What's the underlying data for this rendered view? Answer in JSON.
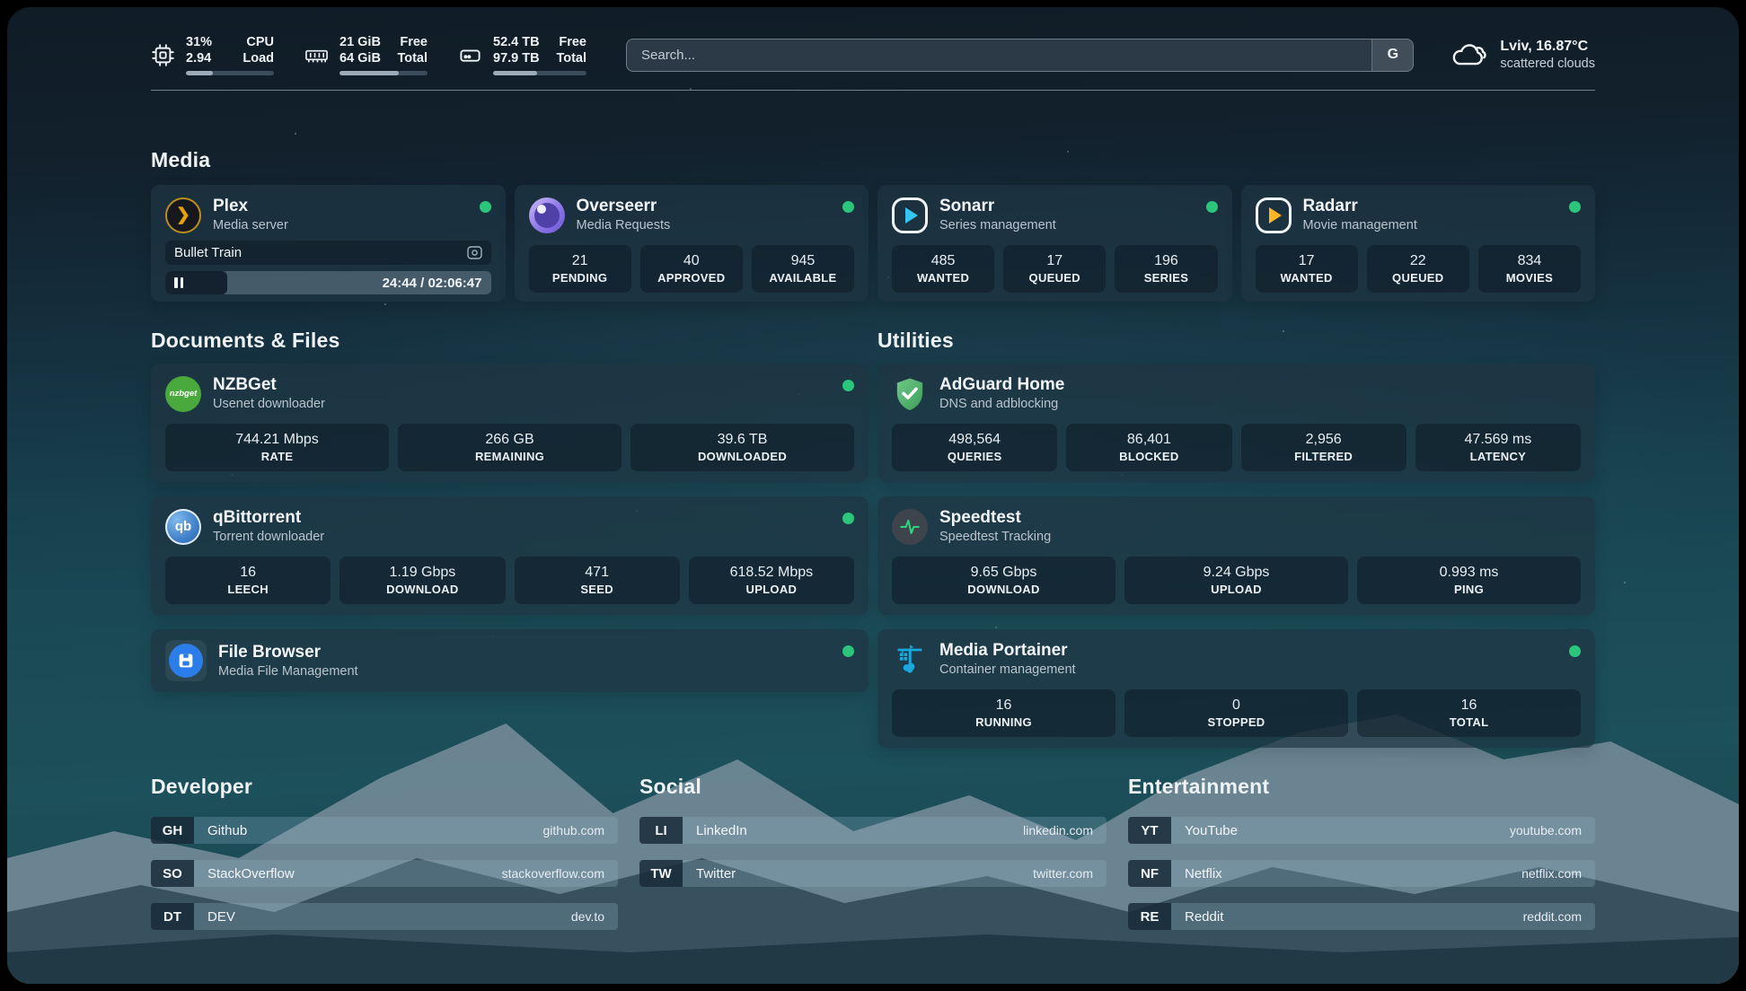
{
  "colors": {
    "status_online": "#2bc57c",
    "accent_plex": "#e5a00d"
  },
  "header": {
    "cpu": {
      "value1": "31%",
      "value2": "2.94",
      "label1": "CPU",
      "label2": "Load",
      "progress": 31
    },
    "memory": {
      "value1": "21 GiB",
      "value2": "64 GiB",
      "label1": "Free",
      "label2": "Total",
      "progress": 67
    },
    "disk": {
      "value1": "52.4 TB",
      "value2": "97.9 TB",
      "label1": "Free",
      "label2": "Total",
      "progress": 47
    },
    "search": {
      "placeholder": "Search...",
      "engine_button": "G"
    },
    "weather": {
      "line1": "Lviv, 16.87°C",
      "line2": "scattered clouds"
    }
  },
  "media": {
    "heading": "Media",
    "plex": {
      "title": "Plex",
      "subtitle": "Media server",
      "now_playing": "Bullet Train",
      "time": "24:44 / 02:06:47",
      "progress_percent": 19
    },
    "overseerr": {
      "title": "Overseerr",
      "subtitle": "Media Requests",
      "stats": [
        {
          "value": "21",
          "label": "PENDING"
        },
        {
          "value": "40",
          "label": "APPROVED"
        },
        {
          "value": "945",
          "label": "AVAILABLE"
        }
      ]
    },
    "sonarr": {
      "title": "Sonarr",
      "subtitle": "Series management",
      "stats": [
        {
          "value": "485",
          "label": "WANTED"
        },
        {
          "value": "17",
          "label": "QUEUED"
        },
        {
          "value": "196",
          "label": "SERIES"
        }
      ]
    },
    "radarr": {
      "title": "Radarr",
      "subtitle": "Movie management",
      "stats": [
        {
          "value": "17",
          "label": "WANTED"
        },
        {
          "value": "22",
          "label": "QUEUED"
        },
        {
          "value": "834",
          "label": "MOVIES"
        }
      ]
    }
  },
  "documents": {
    "heading": "Documents & Files",
    "nzbget": {
      "title": "NZBGet",
      "subtitle": "Usenet downloader",
      "icon_text": "nzbget",
      "stats": [
        {
          "value": "744.21 Mbps",
          "label": "RATE"
        },
        {
          "value": "266 GB",
          "label": "REMAINING"
        },
        {
          "value": "39.6 TB",
          "label": "DOWNLOADED"
        }
      ]
    },
    "qbittorrent": {
      "title": "qBittorrent",
      "subtitle": "Torrent downloader",
      "icon_text": "qb",
      "stats": [
        {
          "value": "16",
          "label": "LEECH"
        },
        {
          "value": "1.19 Gbps",
          "label": "DOWNLOAD"
        },
        {
          "value": "471",
          "label": "SEED"
        },
        {
          "value": "618.52 Mbps",
          "label": "UPLOAD"
        }
      ]
    },
    "filebrowser": {
      "title": "File Browser",
      "subtitle": "Media File Management"
    }
  },
  "utilities": {
    "heading": "Utilities",
    "adguard": {
      "title": "AdGuard Home",
      "subtitle": "DNS and adblocking",
      "stats": [
        {
          "value": "498,564",
          "label": "QUERIES"
        },
        {
          "value": "86,401",
          "label": "BLOCKED"
        },
        {
          "value": "2,956",
          "label": "FILTERED"
        },
        {
          "value": "47.569 ms",
          "label": "LATENCY"
        }
      ]
    },
    "speedtest": {
      "title": "Speedtest",
      "subtitle": "Speedtest Tracking",
      "stats": [
        {
          "value": "9.65 Gbps",
          "label": "DOWNLOAD"
        },
        {
          "value": "9.24 Gbps",
          "label": "UPLOAD"
        },
        {
          "value": "0.993 ms",
          "label": "PING"
        }
      ]
    },
    "portainer": {
      "title": "Media Portainer",
      "subtitle": "Container management",
      "stats": [
        {
          "value": "16",
          "label": "RUNNING"
        },
        {
          "value": "0",
          "label": "STOPPED"
        },
        {
          "value": "16",
          "label": "TOTAL"
        }
      ]
    }
  },
  "bookmarks": {
    "developer": {
      "heading": "Developer",
      "links": [
        {
          "abbr": "GH",
          "name": "Github",
          "url": "github.com"
        },
        {
          "abbr": "SO",
          "name": "StackOverflow",
          "url": "stackoverflow.com"
        },
        {
          "abbr": "DT",
          "name": "DEV",
          "url": "dev.to"
        }
      ]
    },
    "social": {
      "heading": "Social",
      "links": [
        {
          "abbr": "LI",
          "name": "LinkedIn",
          "url": "linkedin.com"
        },
        {
          "abbr": "TW",
          "name": "Twitter",
          "url": "twitter.com"
        }
      ]
    },
    "entertainment": {
      "heading": "Entertainment",
      "links": [
        {
          "abbr": "YT",
          "name": "YouTube",
          "url": "youtube.com"
        },
        {
          "abbr": "NF",
          "name": "Netflix",
          "url": "netflix.com"
        },
        {
          "abbr": "RE",
          "name": "Reddit",
          "url": "reddit.com"
        }
      ]
    }
  }
}
